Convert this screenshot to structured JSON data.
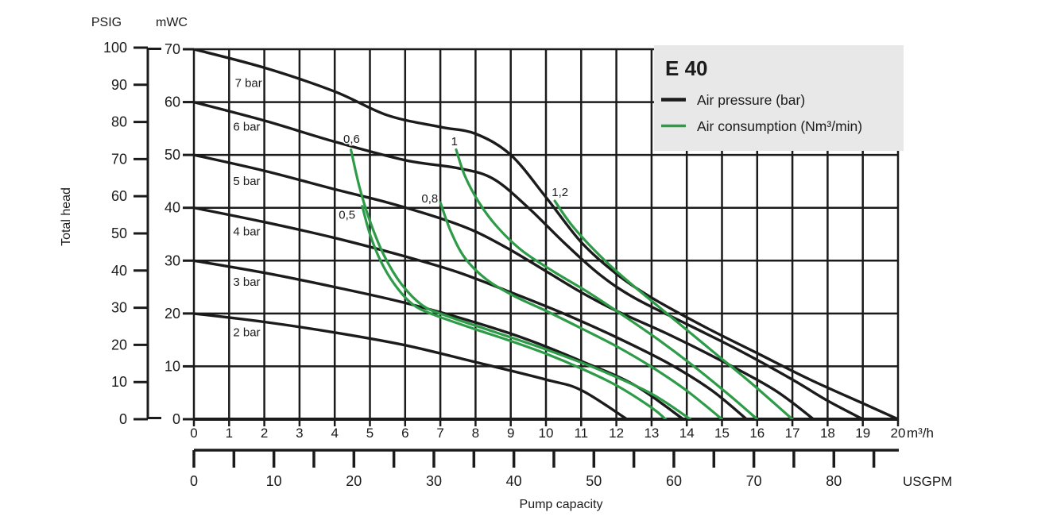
{
  "header": {
    "psig": "PSIG",
    "mwc": "mWC"
  },
  "legend": {
    "title": "E 40",
    "items": [
      {
        "label": "Air pressure (bar)",
        "color": "#1b1b1b"
      },
      {
        "label": "Air consumption (Nm³/min)",
        "color": "#2e9b48"
      }
    ]
  },
  "colors": {
    "black": "#1b1b1b",
    "green": "#2e9b48",
    "grid": "#1b1b1b",
    "legend_bg": "#e8e8e8",
    "legend_border": "#8a8a8a"
  },
  "chart_data": {
    "type": "line",
    "title": "E 40",
    "xlabel": "Pump capacity",
    "ylabel": "Total head",
    "grid": true,
    "legend_position": "top-right",
    "x_primary": {
      "unit": "m³/h",
      "min": 0,
      "max": 20,
      "ticks": [
        0,
        1,
        2,
        3,
        4,
        5,
        6,
        7,
        8,
        9,
        10,
        11,
        12,
        13,
        14,
        15,
        16,
        17,
        18,
        19,
        20
      ]
    },
    "x_secondary": {
      "unit": "USGPM",
      "labels": [
        0,
        10,
        20,
        30,
        40,
        50,
        60,
        70,
        80
      ],
      "minor_ticks": [
        0,
        5,
        10,
        15,
        20,
        25,
        30,
        35,
        40,
        45,
        50,
        55,
        60,
        65,
        70,
        75,
        80,
        85
      ]
    },
    "y_primary": {
      "unit": "mWC",
      "min": 0,
      "max": 70,
      "ticks": [
        70,
        60,
        50,
        40,
        30,
        20,
        10,
        0
      ]
    },
    "y_secondary": {
      "unit": "PSIG",
      "ticks": [
        100,
        90,
        80,
        70,
        60,
        50,
        40,
        30,
        20,
        10,
        0
      ]
    },
    "series": [
      {
        "name": "2 bar",
        "group": "Air pressure (bar)",
        "color_role": "black",
        "label_anchor": [
          1.5,
          15.7
        ],
        "points": [
          [
            0,
            20
          ],
          [
            2,
            18.4
          ],
          [
            4,
            16.4
          ],
          [
            6,
            14
          ],
          [
            8,
            10.8
          ],
          [
            10,
            7.5
          ],
          [
            11,
            5.5
          ],
          [
            12.3,
            0
          ]
        ]
      },
      {
        "name": "3 bar",
        "group": "Air pressure (bar)",
        "color_role": "black",
        "label_anchor": [
          1.5,
          25.2
        ],
        "points": [
          [
            0,
            30
          ],
          [
            2,
            27.7
          ],
          [
            4,
            25
          ],
          [
            6,
            22
          ],
          [
            8,
            18.3
          ],
          [
            9.5,
            15
          ],
          [
            11,
            11
          ],
          [
            12.5,
            6.5
          ],
          [
            13.9,
            0
          ]
        ]
      },
      {
        "name": "4 bar",
        "group": "Air pressure (bar)",
        "color_role": "black",
        "label_anchor": [
          1.5,
          34.8
        ],
        "points": [
          [
            0,
            40
          ],
          [
            2,
            37.3
          ],
          [
            4,
            34.3
          ],
          [
            6,
            30.8
          ],
          [
            7.5,
            27.8
          ],
          [
            9,
            24
          ],
          [
            10.5,
            20
          ],
          [
            12,
            15.5
          ],
          [
            13.5,
            10.5
          ],
          [
            14.7,
            5.5
          ],
          [
            15.7,
            0
          ]
        ]
      },
      {
        "name": "5 bar",
        "group": "Air pressure (bar)",
        "color_role": "black",
        "label_anchor": [
          1.5,
          44.3
        ],
        "points": [
          [
            0,
            50
          ],
          [
            2,
            47
          ],
          [
            4,
            43.5
          ],
          [
            5.5,
            41
          ],
          [
            7,
            38
          ],
          [
            8,
            35.5
          ],
          [
            9,
            32
          ],
          [
            10,
            28
          ],
          [
            11,
            24
          ],
          [
            12,
            20.5
          ],
          [
            13.5,
            16
          ],
          [
            15,
            11
          ],
          [
            16.5,
            5.5
          ],
          [
            17.6,
            0
          ]
        ]
      },
      {
        "name": "6 bar",
        "group": "Air pressure (bar)",
        "color_role": "black",
        "label_anchor": [
          1.5,
          54.6
        ],
        "points": [
          [
            0,
            60
          ],
          [
            2,
            56.5
          ],
          [
            4,
            52.5
          ],
          [
            6,
            49
          ],
          [
            7.5,
            47.5
          ],
          [
            8.5,
            45.5
          ],
          [
            9.5,
            40
          ],
          [
            10.5,
            33.5
          ],
          [
            11.5,
            27.5
          ],
          [
            12.5,
            23
          ],
          [
            14,
            18
          ],
          [
            15.5,
            13
          ],
          [
            17,
            7.5
          ],
          [
            18,
            3.5
          ],
          [
            19,
            0
          ]
        ]
      },
      {
        "name": "7 bar",
        "group": "Air pressure (bar)",
        "color_role": "black",
        "label_anchor": [
          1.55,
          62.9
        ],
        "points": [
          [
            0,
            70
          ],
          [
            2,
            66.5
          ],
          [
            4,
            62
          ],
          [
            5.5,
            57.5
          ],
          [
            7,
            55.3
          ],
          [
            8,
            54
          ],
          [
            9,
            50
          ],
          [
            10,
            42
          ],
          [
            11,
            33.5
          ],
          [
            12,
            27.5
          ],
          [
            13,
            23
          ],
          [
            14.5,
            17.5
          ],
          [
            16,
            12.5
          ],
          [
            17.5,
            7.5
          ],
          [
            19,
            3
          ],
          [
            20,
            0
          ]
        ]
      },
      {
        "name": "0,5",
        "group": "Air consumption (Nm³/min)",
        "color_role": "green",
        "label_anchor": [
          4.35,
          37.9
        ],
        "points": [
          [
            4.78,
            40.3
          ],
          [
            5,
            35
          ],
          [
            5.3,
            30
          ],
          [
            5.7,
            25.5
          ],
          [
            6.2,
            21.8
          ],
          [
            6.8,
            19.8
          ],
          [
            8,
            17
          ],
          [
            9,
            14.8
          ],
          [
            10,
            12.4
          ],
          [
            11,
            9.6
          ],
          [
            12,
            6.4
          ],
          [
            13,
            2.2
          ],
          [
            13.4,
            0
          ]
        ]
      },
      {
        "name": "0,6",
        "group": "Air consumption (Nm³/min)",
        "color_role": "green",
        "label_anchor": [
          4.48,
          52.3
        ],
        "points": [
          [
            4.46,
            51
          ],
          [
            4.7,
            44
          ],
          [
            5,
            37.5
          ],
          [
            5.4,
            31
          ],
          [
            5.9,
            25.5
          ],
          [
            6.5,
            21.5
          ],
          [
            7.2,
            19.5
          ],
          [
            8.5,
            16.6
          ],
          [
            10,
            13.2
          ],
          [
            11.5,
            9.4
          ],
          [
            13,
            4.8
          ],
          [
            14.1,
            0
          ]
        ]
      },
      {
        "name": "0,8",
        "group": "Air consumption (Nm³/min)",
        "color_role": "green",
        "label_anchor": [
          6.7,
          41.0
        ],
        "points": [
          [
            7,
            41
          ],
          [
            7.3,
            35.5
          ],
          [
            7.7,
            30.5
          ],
          [
            8.3,
            26.5
          ],
          [
            9.1,
            23.3
          ],
          [
            10,
            20.5
          ],
          [
            11,
            17.2
          ],
          [
            12,
            13.8
          ],
          [
            13,
            9.9
          ],
          [
            14,
            5.4
          ],
          [
            15,
            0
          ]
        ]
      },
      {
        "name": "1",
        "group": "Air consumption (Nm³/min)",
        "color_role": "green",
        "label_anchor": [
          7.4,
          51.8
        ],
        "points": [
          [
            7.45,
            51
          ],
          [
            7.7,
            46
          ],
          [
            8.1,
            41
          ],
          [
            8.6,
            36.5
          ],
          [
            9.3,
            32
          ],
          [
            10.2,
            28
          ],
          [
            11.2,
            24
          ],
          [
            12.2,
            19.6
          ],
          [
            13.2,
            15
          ],
          [
            14.2,
            10
          ],
          [
            15.2,
            4.6
          ],
          [
            16,
            0
          ]
        ]
      },
      {
        "name": "1,2",
        "group": "Air consumption (Nm³/min)",
        "color_role": "green",
        "label_anchor": [
          10.4,
          42.2
        ],
        "points": [
          [
            10.25,
            41.3
          ],
          [
            10.7,
            37
          ],
          [
            11.3,
            32.5
          ],
          [
            12,
            28
          ],
          [
            12.8,
            23.5
          ],
          [
            13.8,
            18
          ],
          [
            14.8,
            12.5
          ],
          [
            15.8,
            7
          ],
          [
            17,
            0
          ]
        ]
      }
    ]
  }
}
